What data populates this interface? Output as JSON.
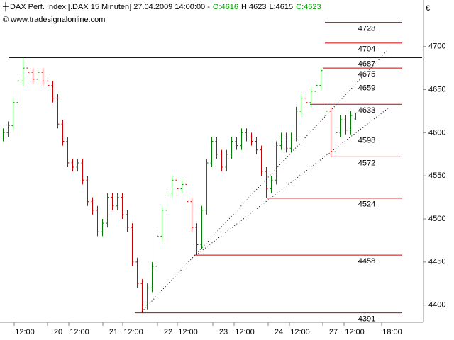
{
  "chart_data": {
    "type": "ohlc",
    "title": "DAX Perf. Index [.DAX  15 Minuten] 27.04.2009 14:00:00 -",
    "quote": [
      {
        "text": "O:4616",
        "color": "#00a000"
      },
      {
        "text": "H:4623",
        "color": "#000000"
      },
      {
        "text": "L:4615",
        "color": "#000000"
      },
      {
        "text": "C:4623",
        "color": "#00a000"
      }
    ],
    "source": "© www.tradesignalonline.com",
    "currency": "€",
    "up_color": "#008000",
    "down_color": "#cc0000",
    "xticks": [
      "12:00",
      "20",
      "12:00",
      "21",
      "12:00",
      "22",
      "12:00",
      "23",
      "12:00",
      "24",
      "12:00",
      "27",
      "12:00",
      "18:00"
    ],
    "ylim": [
      4380,
      4754
    ],
    "yticks": [
      4400,
      4450,
      4500,
      4550,
      4600,
      4650,
      4700
    ],
    "open": [
      4595,
      4600,
      4608,
      4635,
      4660,
      4675,
      4670,
      4662,
      4670,
      4660,
      4655,
      4640,
      4610,
      4590,
      4565,
      4560,
      4565,
      4545,
      4520,
      4510,
      4485,
      4495,
      4525,
      4515,
      4525,
      4505,
      4490,
      4450,
      4425,
      4400,
      4420,
      4445,
      4480,
      4510,
      4530,
      4545,
      4535,
      4540,
      4520,
      4490,
      4470,
      4510,
      4565,
      4590,
      4575,
      4560,
      4575,
      4590,
      4585,
      4600,
      4595,
      4590,
      4580,
      4555,
      4535,
      4545,
      4585,
      4595,
      4582,
      4595,
      4625,
      4640,
      4635,
      4648,
      4655,
      4620,
      4625,
      4578,
      4600,
      4615,
      4603,
      4616
    ],
    "high": [
      4605,
      4613,
      4640,
      4665,
      4687,
      4680,
      4675,
      4675,
      4675,
      4665,
      4660,
      4645,
      4615,
      4595,
      4570,
      4570,
      4570,
      4550,
      4525,
      4515,
      4500,
      4530,
      4530,
      4530,
      4530,
      4510,
      4495,
      4455,
      4430,
      4425,
      4450,
      4485,
      4515,
      4535,
      4550,
      4550,
      4545,
      4545,
      4525,
      4495,
      4515,
      4570,
      4595,
      4595,
      4580,
      4580,
      4595,
      4595,
      4605,
      4605,
      4600,
      4595,
      4585,
      4560,
      4550,
      4590,
      4600,
      4600,
      4600,
      4630,
      4645,
      4645,
      4653,
      4660,
      4675,
      4630,
      4630,
      4605,
      4620,
      4620,
      4625,
      4623
    ],
    "low": [
      4590,
      4595,
      4603,
      4630,
      4655,
      4665,
      4657,
      4657,
      4655,
      4650,
      4635,
      4605,
      4585,
      4560,
      4555,
      4555,
      4540,
      4515,
      4505,
      4480,
      4480,
      4490,
      4510,
      4510,
      4500,
      4485,
      4445,
      4420,
      4391,
      4395,
      4415,
      4440,
      4475,
      4505,
      4525,
      4530,
      4530,
      4515,
      4485,
      4458,
      4465,
      4505,
      4560,
      4570,
      4555,
      4555,
      4570,
      4580,
      4580,
      4590,
      4585,
      4575,
      4550,
      4524,
      4530,
      4540,
      4580,
      4577,
      4577,
      4590,
      4620,
      4630,
      4630,
      4643,
      4650,
      4615,
      4572,
      4573,
      4595,
      4598,
      4598,
      4615
    ],
    "close": [
      4600,
      4608,
      4635,
      4660,
      4675,
      4670,
      4662,
      4670,
      4660,
      4655,
      4640,
      4610,
      4590,
      4565,
      4560,
      4565,
      4545,
      4520,
      4510,
      4485,
      4495,
      4525,
      4515,
      4525,
      4505,
      4490,
      4450,
      4425,
      4400,
      4420,
      4445,
      4480,
      4510,
      4530,
      4545,
      4535,
      4540,
      4520,
      4490,
      4470,
      4510,
      4565,
      4590,
      4575,
      4560,
      4575,
      4590,
      4585,
      4600,
      4595,
      4590,
      4580,
      4555,
      4535,
      4545,
      4585,
      4595,
      4582,
      4595,
      4625,
      4640,
      4635,
      4648,
      4655,
      4672,
      4625,
      4578,
      4600,
      4615,
      4603,
      4620,
      4623
    ],
    "levels": [
      {
        "value": 4728,
        "color": "#cc0000",
        "line": true
      },
      {
        "value": 4704,
        "color": "#cc0000",
        "line": true
      },
      {
        "value": 4687,
        "color": "#0000cc",
        "line": true
      },
      {
        "value": 4675,
        "color": "#cc0000",
        "line": true
      },
      {
        "value": 4659,
        "color": "#000000",
        "line": false
      },
      {
        "value": 4633,
        "color": "#cc0000",
        "line": true
      },
      {
        "value": 4598,
        "color": "#000000",
        "line": false
      },
      {
        "value": 4572,
        "color": "#cc0000",
        "line": true
      },
      {
        "value": 4524,
        "color": "#cc0000",
        "line": true
      },
      {
        "value": 4458,
        "color": "#cc0000",
        "line": true
      },
      {
        "value": 4391,
        "color": "#cc0000",
        "line": true
      }
    ]
  }
}
